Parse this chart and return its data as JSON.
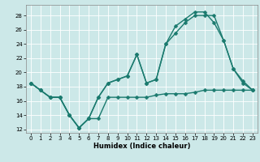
{
  "xlabel": "Humidex (Indice chaleur)",
  "xlim": [
    -0.5,
    23.5
  ],
  "ylim": [
    11.5,
    29.5
  ],
  "yticks": [
    12,
    14,
    16,
    18,
    20,
    22,
    24,
    26,
    28
  ],
  "xticks": [
    0,
    1,
    2,
    3,
    4,
    5,
    6,
    7,
    8,
    9,
    10,
    11,
    12,
    13,
    14,
    15,
    16,
    17,
    18,
    19,
    20,
    21,
    22,
    23
  ],
  "bg_color": "#cce8e8",
  "line_color": "#1a7a6e",
  "series": [
    {
      "x": [
        0,
        1,
        2,
        3,
        4,
        5,
        6,
        7,
        8,
        9,
        10,
        11,
        12,
        13,
        14,
        15,
        16,
        17,
        18,
        19,
        20,
        21,
        22,
        23
      ],
      "y": [
        18.5,
        17.5,
        16.5,
        16.5,
        14.0,
        12.2,
        13.5,
        13.5,
        16.5,
        16.5,
        16.5,
        16.5,
        16.5,
        16.8,
        17.0,
        17.0,
        17.0,
        17.2,
        17.5,
        17.5,
        17.5,
        17.5,
        17.5,
        17.5
      ]
    },
    {
      "x": [
        0,
        1,
        2,
        3,
        4,
        5,
        6,
        7,
        8,
        9,
        10,
        11,
        12,
        13,
        14,
        15,
        16,
        17,
        18,
        19,
        20,
        21,
        22,
        23
      ],
      "y": [
        18.5,
        17.5,
        16.5,
        16.5,
        14.0,
        12.2,
        13.5,
        16.5,
        18.5,
        19.0,
        19.5,
        22.5,
        18.5,
        19.0,
        24.0,
        25.5,
        27.0,
        28.0,
        28.0,
        28.0,
        24.5,
        20.5,
        18.5,
        17.5
      ]
    },
    {
      "x": [
        0,
        1,
        2,
        3,
        4,
        5,
        6,
        7,
        8,
        9,
        10,
        11,
        12,
        13,
        14,
        15,
        16,
        17,
        18,
        19,
        20,
        21,
        22,
        23
      ],
      "y": [
        18.5,
        17.5,
        16.5,
        16.5,
        14.0,
        12.2,
        13.5,
        16.5,
        18.5,
        19.0,
        19.5,
        22.5,
        18.5,
        19.0,
        24.0,
        26.5,
        27.5,
        28.5,
        28.5,
        27.0,
        24.5,
        20.5,
        18.8,
        17.5
      ]
    }
  ],
  "markersize": 2.5,
  "linewidth": 1.0,
  "xlabel_fontsize": 6.0,
  "tick_fontsize": 5.0
}
